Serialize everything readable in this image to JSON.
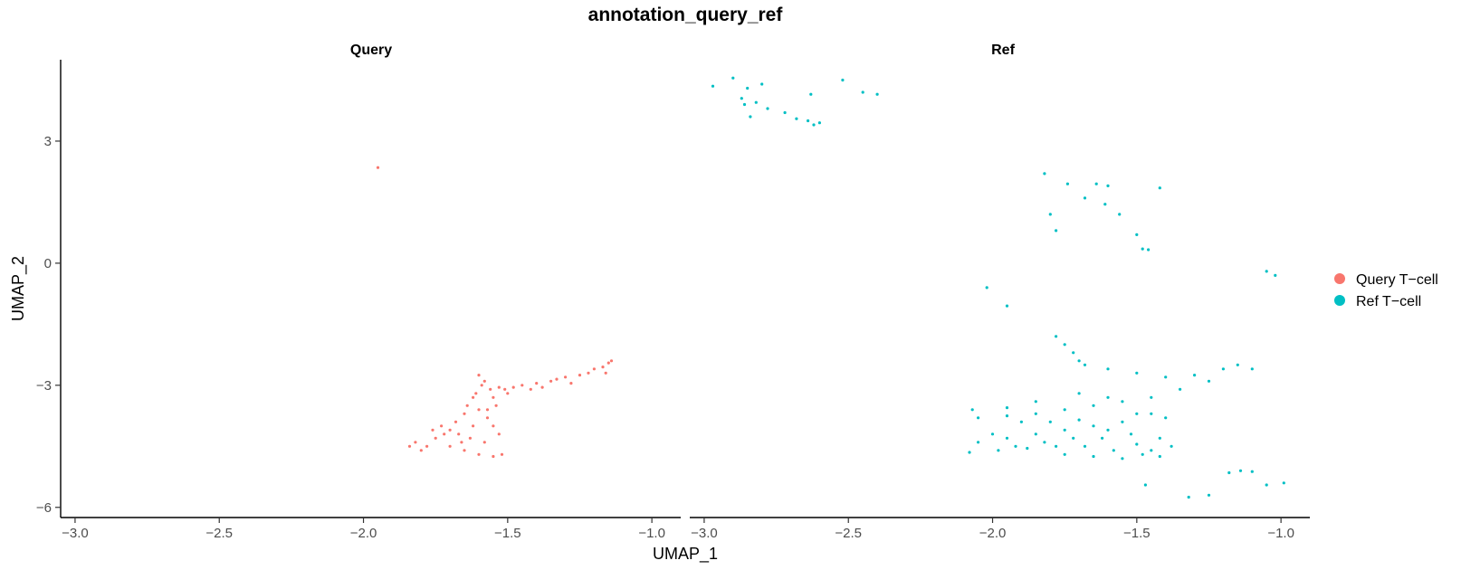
{
  "chart_data": {
    "type": "scatter",
    "title": "annotation_query_ref",
    "xlabel": "UMAP_1",
    "ylabel": "UMAP_2",
    "xlim": [
      -3.05,
      -0.9
    ],
    "ylim": [
      -6.25,
      5.0
    ],
    "x_ticks": [
      -3.0,
      -2.5,
      -2.0,
      -1.5,
      -1.0
    ],
    "x_tick_labels": [
      "−3.0",
      "−2.5",
      "−2.0",
      "−1.5",
      "−1.0"
    ],
    "y_ticks": [
      3,
      0,
      -3,
      -6
    ],
    "y_tick_labels": [
      "3",
      "0",
      "−3",
      "−6"
    ],
    "grid": false,
    "legend_position": "right",
    "facets": [
      "Query",
      "Ref"
    ],
    "series": [
      {
        "name": "Query T−cell",
        "color": "#F8766D",
        "facet": "Query",
        "points": [
          [
            -1.95,
            2.35
          ],
          [
            -1.53,
            -3.05
          ],
          [
            -1.51,
            -3.1
          ],
          [
            -1.5,
            -3.2
          ],
          [
            -1.48,
            -3.05
          ],
          [
            -1.45,
            -3.0
          ],
          [
            -1.4,
            -2.95
          ],
          [
            -1.35,
            -2.9
          ],
          [
            -1.3,
            -2.8
          ],
          [
            -1.25,
            -2.75
          ],
          [
            -1.2,
            -2.6
          ],
          [
            -1.17,
            -2.55
          ],
          [
            -1.15,
            -2.45
          ],
          [
            -1.14,
            -2.4
          ],
          [
            -1.16,
            -2.7
          ],
          [
            -1.22,
            -2.7
          ],
          [
            -1.28,
            -2.95
          ],
          [
            -1.33,
            -2.85
          ],
          [
            -1.38,
            -3.05
          ],
          [
            -1.42,
            -3.1
          ],
          [
            -1.6,
            -2.75
          ],
          [
            -1.58,
            -2.9
          ],
          [
            -1.56,
            -3.1
          ],
          [
            -1.55,
            -3.3
          ],
          [
            -1.54,
            -3.5
          ],
          [
            -1.62,
            -3.3
          ],
          [
            -1.6,
            -3.6
          ],
          [
            -1.57,
            -3.8
          ],
          [
            -1.55,
            -4.0
          ],
          [
            -1.53,
            -4.2
          ],
          [
            -1.65,
            -3.7
          ],
          [
            -1.68,
            -3.9
          ],
          [
            -1.7,
            -4.1
          ],
          [
            -1.72,
            -4.2
          ],
          [
            -1.62,
            -4.0
          ],
          [
            -1.75,
            -4.3
          ],
          [
            -1.78,
            -4.5
          ],
          [
            -1.8,
            -4.6
          ],
          [
            -1.82,
            -4.4
          ],
          [
            -1.84,
            -4.5
          ],
          [
            -1.7,
            -4.5
          ],
          [
            -1.65,
            -4.6
          ],
          [
            -1.6,
            -4.7
          ],
          [
            -1.55,
            -4.75
          ],
          [
            -1.52,
            -4.7
          ],
          [
            -1.58,
            -4.4
          ],
          [
            -1.63,
            -4.3
          ],
          [
            -1.67,
            -4.2
          ],
          [
            -1.73,
            -4.0
          ],
          [
            -1.76,
            -4.1
          ],
          [
            -1.64,
            -3.5
          ],
          [
            -1.61,
            -3.2
          ],
          [
            -1.59,
            -3.0
          ],
          [
            -1.57,
            -3.6
          ],
          [
            -1.66,
            -4.4
          ]
        ]
      },
      {
        "name": "Ref T−cell",
        "color": "#00BFC4",
        "facet": "Ref",
        "points": [
          [
            -2.97,
            4.35
          ],
          [
            -2.9,
            4.55
          ],
          [
            -2.85,
            4.3
          ],
          [
            -2.8,
            4.4
          ],
          [
            -2.86,
            3.9
          ],
          [
            -2.84,
            3.6
          ],
          [
            -2.78,
            3.8
          ],
          [
            -2.72,
            3.7
          ],
          [
            -2.68,
            3.55
          ],
          [
            -2.64,
            3.5
          ],
          [
            -2.62,
            3.4
          ],
          [
            -2.6,
            3.45
          ],
          [
            -2.63,
            4.15
          ],
          [
            -2.52,
            4.5
          ],
          [
            -2.45,
            4.2
          ],
          [
            -2.4,
            4.15
          ],
          [
            -2.87,
            4.05
          ],
          [
            -2.82,
            3.95
          ],
          [
            -1.82,
            2.2
          ],
          [
            -1.74,
            1.95
          ],
          [
            -1.68,
            1.6
          ],
          [
            -1.64,
            1.95
          ],
          [
            -1.6,
            1.9
          ],
          [
            -1.56,
            1.2
          ],
          [
            -1.61,
            1.45
          ],
          [
            -1.5,
            0.7
          ],
          [
            -1.48,
            0.35
          ],
          [
            -1.46,
            0.33
          ],
          [
            -1.8,
            1.2
          ],
          [
            -1.78,
            0.8
          ],
          [
            -1.42,
            1.85
          ],
          [
            -1.05,
            -0.2
          ],
          [
            -1.02,
            -0.3
          ],
          [
            -2.02,
            -0.6
          ],
          [
            -1.95,
            -1.05
          ],
          [
            -1.78,
            -1.8
          ],
          [
            -1.75,
            -2.0
          ],
          [
            -1.72,
            -2.2
          ],
          [
            -1.7,
            -2.4
          ],
          [
            -1.68,
            -2.5
          ],
          [
            -1.6,
            -2.6
          ],
          [
            -1.5,
            -2.7
          ],
          [
            -1.4,
            -2.8
          ],
          [
            -1.3,
            -2.75
          ],
          [
            -1.2,
            -2.6
          ],
          [
            -1.15,
            -2.5
          ],
          [
            -1.1,
            -2.6
          ],
          [
            -1.25,
            -2.9
          ],
          [
            -1.35,
            -3.1
          ],
          [
            -1.45,
            -3.3
          ],
          [
            -1.55,
            -3.4
          ],
          [
            -1.65,
            -3.5
          ],
          [
            -1.75,
            -3.6
          ],
          [
            -1.85,
            -3.7
          ],
          [
            -1.95,
            -3.75
          ],
          [
            -2.05,
            -3.8
          ],
          [
            -2.07,
            -3.6
          ],
          [
            -1.95,
            -3.55
          ],
          [
            -1.85,
            -3.4
          ],
          [
            -1.7,
            -3.2
          ],
          [
            -1.6,
            -3.3
          ],
          [
            -1.5,
            -3.7
          ],
          [
            -1.45,
            -3.7
          ],
          [
            -1.4,
            -3.8
          ],
          [
            -1.55,
            -3.9
          ],
          [
            -1.65,
            -4.0
          ],
          [
            -1.75,
            -4.1
          ],
          [
            -1.85,
            -4.2
          ],
          [
            -1.95,
            -4.3
          ],
          [
            -2.05,
            -4.4
          ],
          [
            -2.08,
            -4.65
          ],
          [
            -1.98,
            -4.6
          ],
          [
            -1.88,
            -4.55
          ],
          [
            -1.78,
            -4.5
          ],
          [
            -1.68,
            -4.5
          ],
          [
            -1.58,
            -4.6
          ],
          [
            -1.48,
            -4.7
          ],
          [
            -1.42,
            -4.75
          ],
          [
            -1.38,
            -4.5
          ],
          [
            -1.42,
            -4.3
          ],
          [
            -1.52,
            -4.2
          ],
          [
            -1.62,
            -4.3
          ],
          [
            -1.72,
            -4.3
          ],
          [
            -1.82,
            -4.4
          ],
          [
            -1.92,
            -4.5
          ],
          [
            -2.0,
            -4.2
          ],
          [
            -1.9,
            -3.9
          ],
          [
            -1.8,
            -3.9
          ],
          [
            -1.7,
            -3.85
          ],
          [
            -1.6,
            -4.1
          ],
          [
            -1.5,
            -4.45
          ],
          [
            -1.45,
            -4.6
          ],
          [
            -1.55,
            -4.8
          ],
          [
            -1.65,
            -4.75
          ],
          [
            -1.75,
            -4.7
          ],
          [
            -1.47,
            -5.45
          ],
          [
            -1.32,
            -5.75
          ],
          [
            -1.25,
            -5.7
          ],
          [
            -1.18,
            -5.15
          ],
          [
            -1.14,
            -5.1
          ],
          [
            -1.1,
            -5.12
          ],
          [
            -1.05,
            -5.45
          ],
          [
            -0.99,
            -5.4
          ]
        ]
      }
    ]
  }
}
